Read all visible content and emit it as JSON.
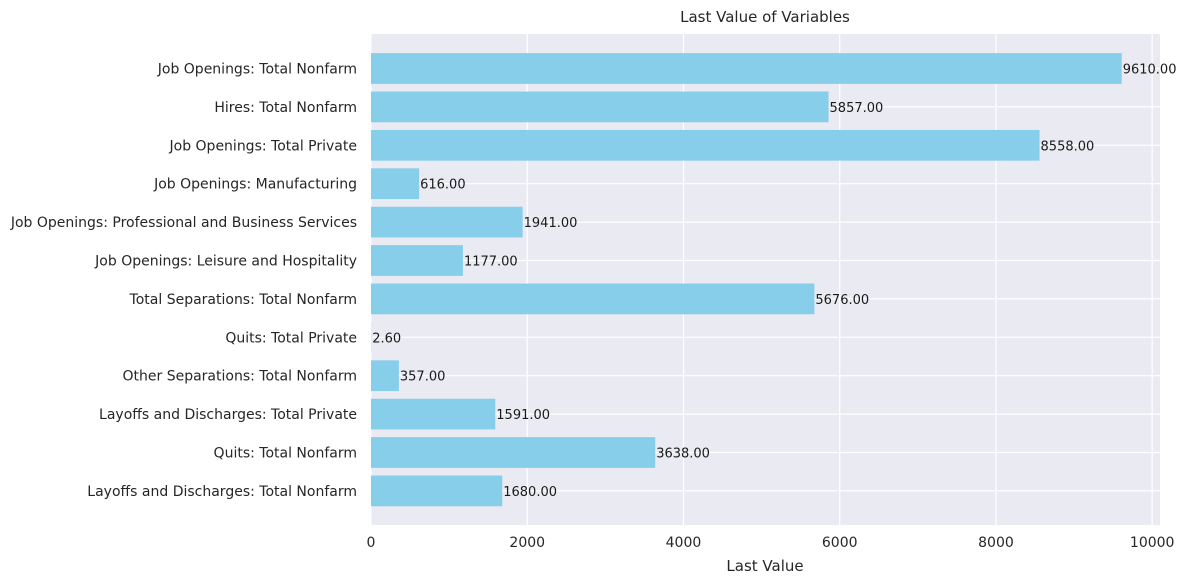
{
  "chart_data": {
    "type": "bar",
    "orientation": "horizontal",
    "title": "Last Value of Variables",
    "xlabel": "Last Value",
    "ylabel": "",
    "xlim": [
      0,
      10100
    ],
    "xticks": [
      0,
      2000,
      4000,
      6000,
      8000,
      10000
    ],
    "grid": true,
    "bar_color": "#87CEEB",
    "background_color": "#EAEAF2",
    "categories": [
      "Job Openings: Total Nonfarm",
      "Hires: Total Nonfarm",
      "Job Openings: Total Private",
      "Job Openings: Manufacturing",
      "Job Openings: Professional and Business Services",
      "Job Openings: Leisure and Hospitality",
      "Total Separations: Total Nonfarm",
      "Quits: Total Private",
      "Other Separations: Total Nonfarm",
      "Layoffs and Discharges: Total Private",
      "Quits: Total Nonfarm",
      "Layoffs and Discharges: Total Nonfarm"
    ],
    "values": [
      9610.0,
      5857.0,
      8558.0,
      616.0,
      1941.0,
      1177.0,
      5676.0,
      2.6,
      357.0,
      1591.0,
      3638.0,
      1680.0
    ],
    "value_labels": [
      "9610.00",
      "5857.00",
      "8558.00",
      "616.00",
      "1941.00",
      "1177.00",
      "5676.00",
      "2.60",
      "357.00",
      "1591.00",
      "3638.00",
      "1680.00"
    ]
  }
}
